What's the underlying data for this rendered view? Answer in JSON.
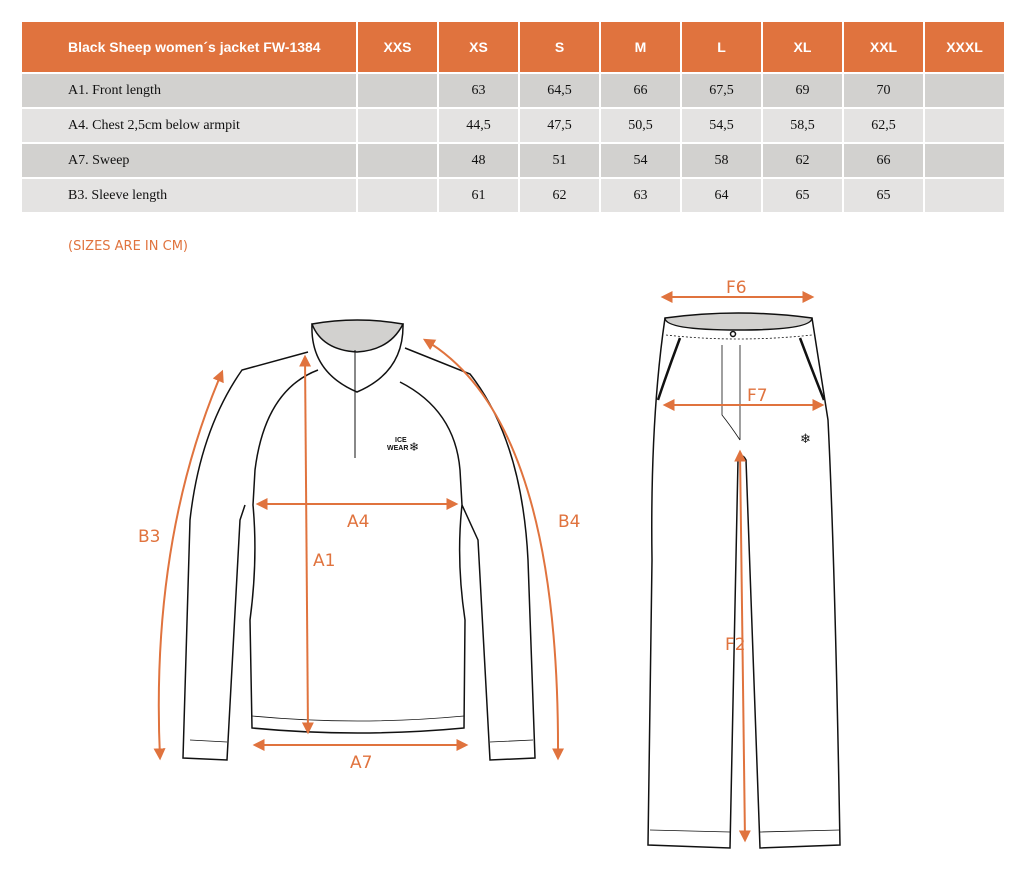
{
  "table": {
    "title": "Black Sheep women´s jacket FW-1384",
    "sizes": [
      "XXS",
      "XS",
      "S",
      "M",
      "L",
      "XL",
      "XXL",
      "XXXL"
    ],
    "rows": [
      {
        "label": "A1. Front length",
        "values": [
          "",
          "63",
          "64,5",
          "66",
          "67,5",
          "69",
          "70",
          ""
        ]
      },
      {
        "label": "A4. Chest 2,5cm below armpit",
        "values": [
          "",
          "44,5",
          "47,5",
          "50,5",
          "54,5",
          "58,5",
          "62,5",
          ""
        ]
      },
      {
        "label": "A7. Sweep",
        "values": [
          "",
          "48",
          "51",
          "54",
          "58",
          "62",
          "66",
          ""
        ]
      },
      {
        "label": "B3. Sleeve length",
        "values": [
          "",
          "61",
          "62",
          "63",
          "64",
          "65",
          "65",
          ""
        ]
      }
    ]
  },
  "note": "(SIZES ARE IN CM)",
  "diagram": {
    "labels": {
      "a1": "A1",
      "a4": "A4",
      "a7": "A7",
      "b3": "B3",
      "b4": "B4",
      "f6": "F6",
      "f7": "F7",
      "f2": "F2"
    },
    "logo": [
      "ICE",
      "WEAR"
    ]
  },
  "colors": {
    "accent": "#E0733E",
    "row_dark": "#D2D1CF",
    "row_light": "#E4E3E2"
  }
}
